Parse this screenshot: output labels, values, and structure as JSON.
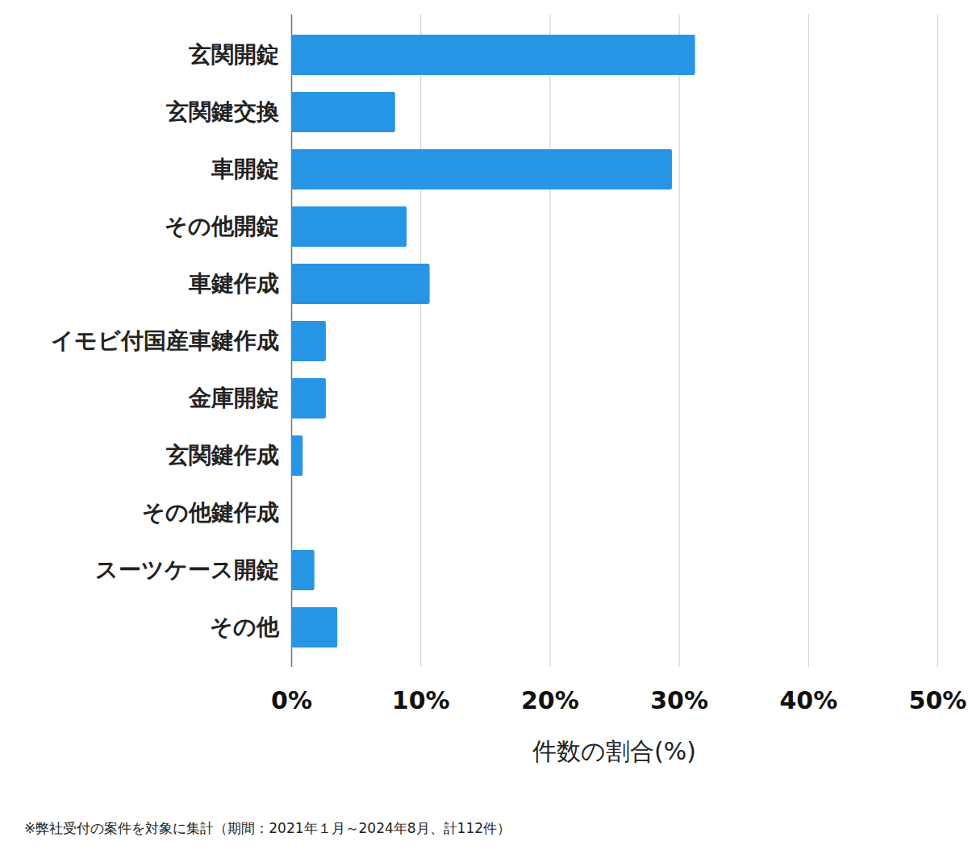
{
  "chart_data": {
    "type": "bar",
    "orientation": "horizontal",
    "categories": [
      "玄関開錠",
      "玄関鍵交換",
      "車開錠",
      "その他開錠",
      "車鍵作成",
      "イモビ付国産車鍵作成",
      "金庫開錠",
      "玄関鍵作成",
      "その他鍵作成",
      "スーツケース開錠",
      "その他"
    ],
    "values": [
      31.25,
      8.04,
      29.46,
      8.93,
      10.71,
      2.68,
      2.68,
      0.89,
      0,
      1.79,
      3.57
    ],
    "color": "#2695e6",
    "x_label": "件数の割合(%)",
    "xlim": [
      0,
      50
    ],
    "xticks": [
      {
        "value": 0,
        "label": "0%"
      },
      {
        "value": 10,
        "label": "10%"
      },
      {
        "value": 20,
        "label": "20%"
      },
      {
        "value": 30,
        "label": "30%"
      },
      {
        "value": 40,
        "label": "40%"
      },
      {
        "value": 50,
        "label": "50%"
      }
    ],
    "grid": true,
    "note": "※弊社受付の案件を対象に集計（期間：2021年１月～2024年8月、計112件）"
  }
}
